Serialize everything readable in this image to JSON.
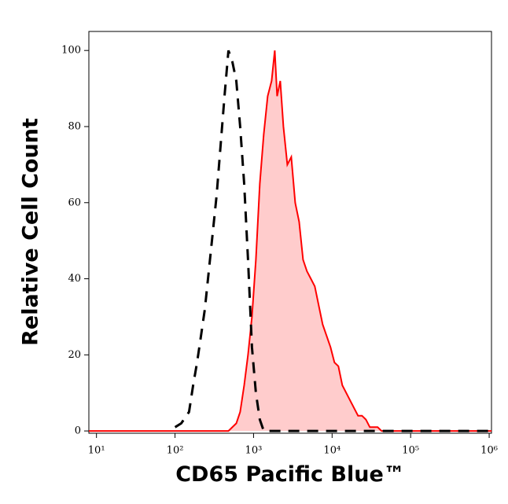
{
  "chart_data": {
    "type": "histogram-overlay",
    "xlabel": "CD65 Pacific Blue™",
    "ylabel": "Relative Cell Count",
    "xscale": "log",
    "xlim": [
      8,
      1070000
    ],
    "ylim": [
      -0.6,
      105
    ],
    "xticks": [
      {
        "value": 10,
        "label": "10¹"
      },
      {
        "value": 100,
        "label": "10²"
      },
      {
        "value": 1000,
        "label": "10³"
      },
      {
        "value": 10000,
        "label": "10⁴"
      },
      {
        "value": 100000,
        "label": "10⁵"
      },
      {
        "value": 1000000,
        "label": "10⁶"
      }
    ],
    "yticks": [
      0,
      20,
      40,
      60,
      80,
      100
    ],
    "series": [
      {
        "color": "#ff0000",
        "fill": "#ffcccc",
        "style": "solid",
        "x": [
          8,
          479,
          603,
          676,
          759,
          851,
          955,
          1072,
          1202,
          1349,
          1514,
          1698,
          1862,
          1995,
          2188,
          2399,
          2692,
          3020,
          3388,
          3802,
          4266,
          4786,
          5370,
          6026,
          6761,
          7586,
          8511,
          9550,
          10715,
          12023,
          13490,
          15136,
          16982,
          19055,
          21380,
          23988,
          26915,
          30200,
          33884,
          38019,
          42658,
          1070000
        ],
        "values": [
          0,
          0,
          2,
          5,
          12,
          20,
          30,
          45,
          65,
          78,
          88,
          92,
          100,
          88,
          92,
          80,
          70,
          72,
          60,
          55,
          45,
          42,
          40,
          38,
          33,
          28,
          25,
          22,
          18,
          17,
          12,
          10,
          8,
          6,
          4,
          4,
          3,
          1,
          1,
          1,
          0,
          0
        ]
      },
      {
        "color": "#000000",
        "fill": null,
        "style": "dashed",
        "x": [
          100,
          120,
          151,
          170,
          191,
          214,
          240,
          269,
          302,
          339,
          380,
          427,
          479,
          537,
          603,
          676,
          759,
          851,
          955,
          1072,
          1202,
          1349,
          1070000
        ],
        "values": [
          1,
          2,
          5,
          12,
          18,
          25,
          32,
          42,
          52,
          62,
          75,
          88,
          100,
          97,
          92,
          80,
          65,
          45,
          22,
          10,
          3,
          0,
          0
        ]
      }
    ]
  }
}
